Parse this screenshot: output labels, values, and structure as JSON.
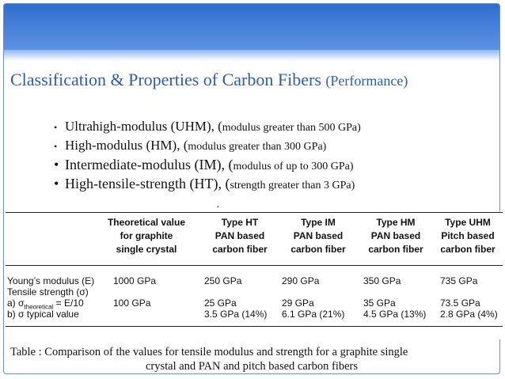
{
  "title": {
    "main": "Classification & Properties of Carbon Fibers",
    "suffix": "(Performance)"
  },
  "bullets": [
    {
      "marker": "•",
      "main": "Ultrahigh-modulus (UHM), (",
      "paren": "modulus greater than 500 GPa)"
    },
    {
      "marker": "•",
      "main": "High-modulus (HM), (",
      "paren": "modulus greater than 300 GPa)"
    },
    {
      "marker": "•",
      "main": "Intermediate-modulus (IM), (",
      "paren": "modulus of up to 300 GPa)"
    },
    {
      "marker": "•",
      "main": "High-tensile-strength (HT), (",
      "paren": "strength greater than 3 GPa)"
    }
  ],
  "stray_mark": "·",
  "table": {
    "headers": [
      [
        "Theoretical value",
        "for graphite",
        "single crystal"
      ],
      [
        "Type HT",
        "PAN based",
        "carbon fiber"
      ],
      [
        "Type IM",
        "PAN based",
        "carbon fiber"
      ],
      [
        "Type HM",
        "PAN based",
        "carbon fiber"
      ],
      [
        "Type UHM",
        "Pitch based",
        "carbon fiber"
      ]
    ],
    "row_labels": {
      "youngs": "Young’s modulus (E)",
      "tensile": "Tensile strength (σ)",
      "theoretical_prefix": "a) σ",
      "theoretical_sub": "theoretical",
      "theoretical_suffix": " = E/10",
      "typical": "b) σ typical value"
    },
    "youngs_values": [
      "1000 GPa",
      "250 GPa",
      "290 GPa",
      "350 GPa",
      "735 GPa"
    ],
    "theoretical_values": [
      "100 GPa",
      "25 GPa",
      "29 GPa",
      "35 GPa",
      "73.5 GPa"
    ],
    "typical_values": [
      "",
      "3.5 GPa (14%)",
      "6.1 GPa (21%)",
      "4.5 GPa (13%)",
      "2.8 GPa (4%)"
    ]
  },
  "caption": {
    "line1": "Table  : Comparison of the values for tensile modulus and strength for a graphite single",
    "line2": "crystal and PAN and pitch based carbon fibers"
  },
  "colors": {
    "title": "#2a5db0",
    "band_top": "#2f6fcf",
    "band_bottom": "#5c92e4"
  }
}
